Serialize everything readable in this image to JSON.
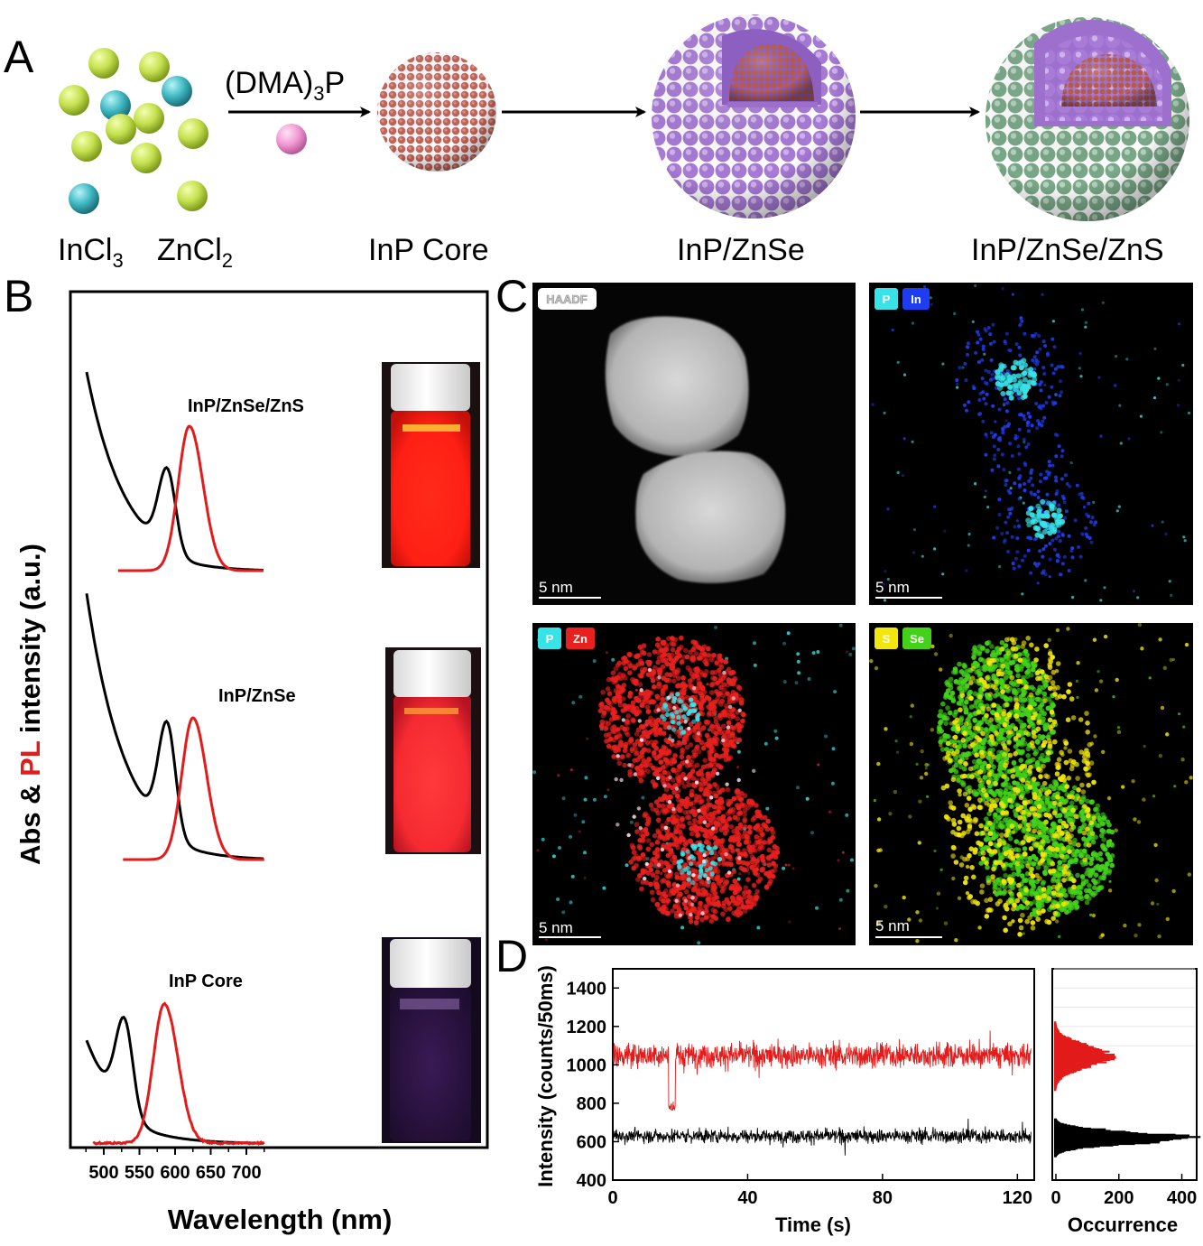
{
  "panels": {
    "A": "A",
    "B": "B",
    "C": "C",
    "D": "D"
  },
  "scheme": {
    "reagent_label": "(DMA)",
    "reagent_sub": "3",
    "reagent_tail": "P",
    "precursor_1_main": "InCl",
    "precursor_1_sub": "3",
    "precursor_2_main": "ZnCl",
    "precursor_2_sub": "2",
    "core_label": "InP Core",
    "shell1_label": "InP/ZnSe",
    "shell2_label": "InP/ZnSe/ZnS",
    "colors": {
      "in": "#c4e04e",
      "zn": "#3fb8c2",
      "p": "#f29ad4",
      "core": "#b9574a",
      "znse": "#a57ad4",
      "zns": "#7daa8c"
    }
  },
  "spectra": {
    "x_title": "Wavelength (nm)",
    "y_title_a": "Abs & ",
    "y_title_b": "PL",
    "y_title_c": " intensity (a.u.)",
    "x_ticks": [
      "500",
      "550",
      "600",
      "650",
      "700"
    ],
    "curves": [
      {
        "label": "InP/ZnSe/ZnS",
        "abs_peak": 590,
        "pl_peak": 620
      },
      {
        "label": "InP/ZnSe",
        "abs_peak": 590,
        "pl_peak": 625
      },
      {
        "label": "InP Core",
        "abs_peak": 530,
        "pl_peak": 585
      }
    ],
    "colors": {
      "abs": "#000000",
      "pl": "#e31b1b"
    }
  },
  "maps": {
    "haadf": "HAADF",
    "map2": [
      "P",
      "In"
    ],
    "map3": [
      "P",
      "Zn"
    ],
    "map4": [
      "S",
      "Se"
    ],
    "scale": "5 nm",
    "colors": {
      "p": "#38e3e8",
      "in": "#1e3cf0",
      "zn": "#e8201e",
      "s": "#f2e60c",
      "se": "#43d21a"
    }
  },
  "chart_data": {
    "type": "line",
    "xlabel": "Time (s)",
    "ylabel": "Intensity (counts/50ms)",
    "xlim": [
      0,
      125
    ],
    "ylim": [
      400,
      1500
    ],
    "x_ticks": [
      "0",
      "40",
      "80",
      "120"
    ],
    "y_ticks": [
      "400",
      "600",
      "800",
      "1000",
      "1200",
      "1400"
    ],
    "series": [
      {
        "color": "#e31b1b",
        "mean": 1050,
        "noise": 60,
        "dips": [
          [
            16.5,
            18.5,
            780
          ]
        ]
      },
      {
        "color": "#000000",
        "mean": 630,
        "noise": 35,
        "dips": []
      }
    ],
    "histogram": {
      "xlabel": "Occurrence",
      "x_ticks": [
        "0",
        "200",
        "400"
      ],
      "xlim": [
        0,
        430
      ],
      "peaks": [
        {
          "color": "#e31b1b",
          "center": 1045,
          "height": 170,
          "width": 55
        },
        {
          "color": "#000000",
          "center": 620,
          "height": 410,
          "width": 30
        }
      ]
    }
  }
}
